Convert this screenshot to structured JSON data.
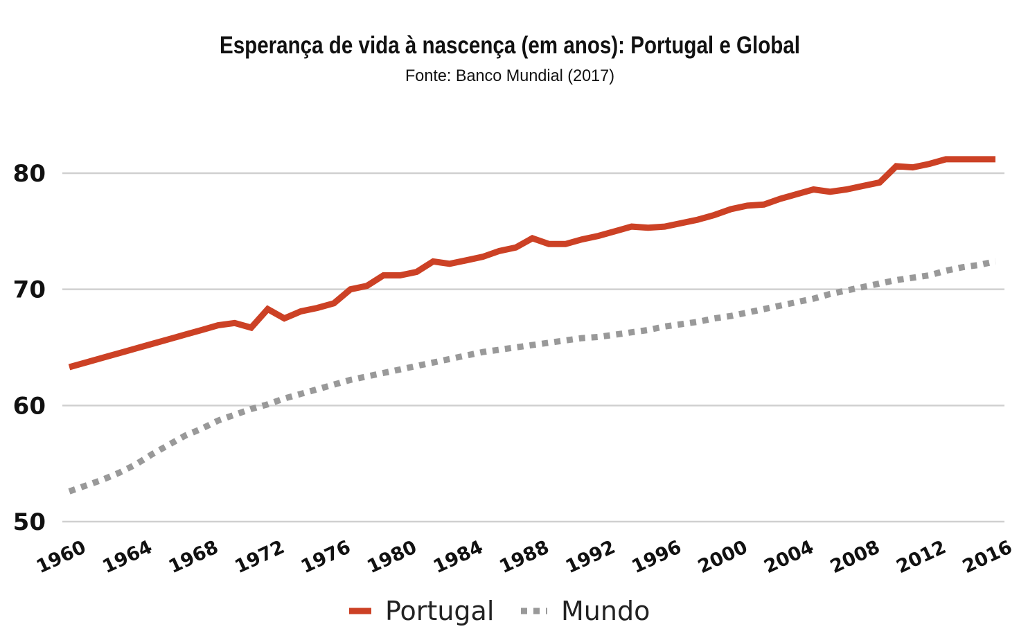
{
  "chart_data": {
    "type": "line",
    "title": "Esperança de vida à nascença (em anos): Portugal e Global",
    "subtitle": "Fonte: Banco Mundial (2017)",
    "xlabel": "",
    "ylabel": "",
    "xlim": [
      1960,
      2016
    ],
    "ylim": [
      50,
      82
    ],
    "yticks": [
      50,
      60,
      70,
      80
    ],
    "xticks": [
      1960,
      1964,
      1968,
      1972,
      1976,
      1980,
      1984,
      1988,
      1992,
      1996,
      2000,
      2004,
      2008,
      2012,
      2016
    ],
    "grid": "horizontal",
    "legend_placement": "bottom",
    "x": [
      1960,
      1961,
      1962,
      1963,
      1964,
      1965,
      1966,
      1967,
      1968,
      1969,
      1970,
      1971,
      1972,
      1973,
      1974,
      1975,
      1976,
      1977,
      1978,
      1979,
      1980,
      1981,
      1982,
      1983,
      1984,
      1985,
      1986,
      1987,
      1988,
      1989,
      1990,
      1991,
      1992,
      1993,
      1994,
      1995,
      1996,
      1997,
      1998,
      1999,
      2000,
      2001,
      2002,
      2003,
      2004,
      2005,
      2006,
      2007,
      2008,
      2009,
      2010,
      2011,
      2012,
      2013,
      2014,
      2015,
      2016
    ],
    "series": [
      {
        "name": "Portugal",
        "color": "#cc4125",
        "style": "solid",
        "values": [
          63.3,
          63.7,
          64.1,
          64.5,
          64.9,
          65.3,
          65.7,
          66.1,
          66.5,
          66.9,
          67.1,
          66.7,
          68.3,
          67.5,
          68.1,
          68.4,
          68.8,
          70.0,
          70.3,
          71.2,
          71.2,
          71.5,
          72.4,
          72.2,
          72.5,
          72.8,
          73.3,
          73.6,
          74.4,
          73.9,
          73.9,
          74.3,
          74.6,
          75.0,
          75.4,
          75.3,
          75.4,
          75.7,
          76.0,
          76.4,
          76.9,
          77.2,
          77.3,
          77.8,
          78.2,
          78.6,
          78.4,
          78.6,
          78.9,
          79.2,
          80.6,
          80.5,
          80.8,
          81.2,
          81.2,
          81.2,
          81.2
        ]
      },
      {
        "name": "Mundo",
        "color": "#999999",
        "style": "dotted",
        "values": [
          52.6,
          53.1,
          53.6,
          54.2,
          54.9,
          55.8,
          56.6,
          57.4,
          58.0,
          58.7,
          59.2,
          59.7,
          60.1,
          60.6,
          61.0,
          61.4,
          61.8,
          62.2,
          62.5,
          62.8,
          63.1,
          63.4,
          63.7,
          64.0,
          64.3,
          64.6,
          64.8,
          65.0,
          65.2,
          65.4,
          65.6,
          65.8,
          65.9,
          66.1,
          66.3,
          66.5,
          66.8,
          67.0,
          67.2,
          67.5,
          67.7,
          68.0,
          68.3,
          68.6,
          68.9,
          69.2,
          69.6,
          69.9,
          70.2,
          70.5,
          70.8,
          71.0,
          71.2,
          71.6,
          71.9,
          72.1,
          72.4
        ]
      }
    ]
  }
}
